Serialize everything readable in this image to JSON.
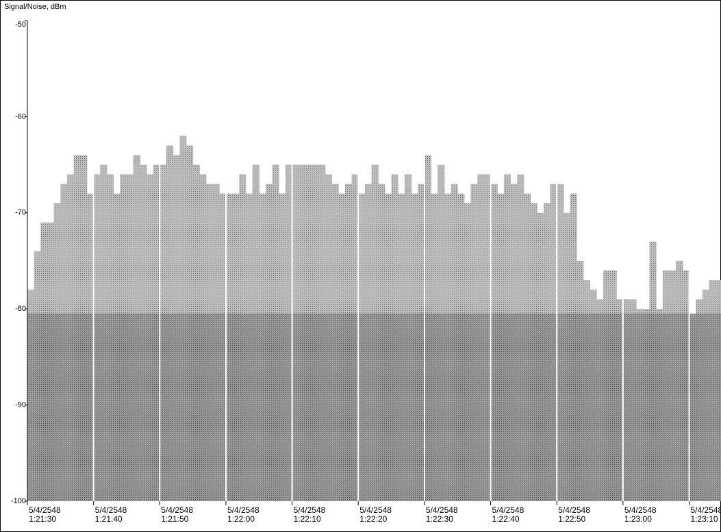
{
  "chart_data": {
    "type": "bar",
    "title": "Signal/Noise, dBm",
    "categories": [
      "5/4/2548 1:21:30",
      null,
      null,
      null,
      null,
      null,
      null,
      null,
      null,
      null,
      "5/4/2548 1:21:40",
      null,
      null,
      null,
      null,
      null,
      null,
      null,
      null,
      null,
      "5/4/2548 1:21:50",
      null,
      null,
      null,
      null,
      null,
      null,
      null,
      null,
      null,
      "5/4/2548 1:22:00",
      null,
      null,
      null,
      null,
      null,
      null,
      null,
      null,
      null,
      "5/4/2548 1:22:10",
      null,
      null,
      null,
      null,
      null,
      null,
      null,
      null,
      null,
      "5/4/2548 1:22:20",
      null,
      null,
      null,
      null,
      null,
      null,
      null,
      null,
      null,
      "5/4/2548 1:22:30",
      null,
      null,
      null,
      null,
      null,
      null,
      null,
      null,
      null,
      "5/4/2548 1:22:40",
      null,
      null,
      null,
      null,
      null,
      null,
      null,
      null,
      null,
      "5/4/2548 1:22:50",
      null,
      null,
      null,
      null,
      null,
      null,
      null,
      null,
      null,
      "5/4/2548 1:23:00",
      null,
      null,
      null,
      null,
      null,
      null,
      null,
      null,
      null,
      "5/4/2548 1:23:10",
      null,
      null,
      null,
      null
    ],
    "values": [
      -78,
      -74,
      -71,
      -71,
      -69,
      -67,
      -66,
      -64,
      -64,
      -68,
      -66,
      -65,
      -66,
      -68,
      -66,
      -66,
      -64,
      -65,
      -66,
      -65,
      -65,
      -63,
      -64,
      -62,
      -63,
      -65,
      -66,
      -67,
      -67,
      -68,
      -68,
      -68,
      -66,
      -68,
      -65,
      -68,
      -67,
      -65,
      -68,
      -65,
      -65,
      -65,
      -65,
      -65,
      -65,
      -66,
      -67,
      -68,
      -67,
      -66,
      -68,
      -67,
      -65,
      -67,
      -68,
      -66,
      -68,
      -66,
      -68,
      -67,
      -64,
      -68,
      -65,
      -68,
      -67,
      -68,
      -69,
      -67,
      -66,
      -66,
      -67,
      -68,
      -66,
      -67,
      -66,
      -68,
      -69,
      -70,
      -69,
      -67,
      -67,
      -70,
      -68,
      -75,
      -77,
      -78,
      -79,
      -76,
      -76,
      -79,
      -79,
      -79,
      -80,
      -80,
      -73,
      -80,
      -76,
      -76,
      -75,
      -76,
      -81,
      -79,
      -78,
      -77,
      -77
    ],
    "color": "#8c8c8c",
    "ylim": [
      -100,
      -50
    ],
    "yticks": [
      -100,
      -90,
      -80,
      -70,
      -60,
      -50
    ]
  }
}
